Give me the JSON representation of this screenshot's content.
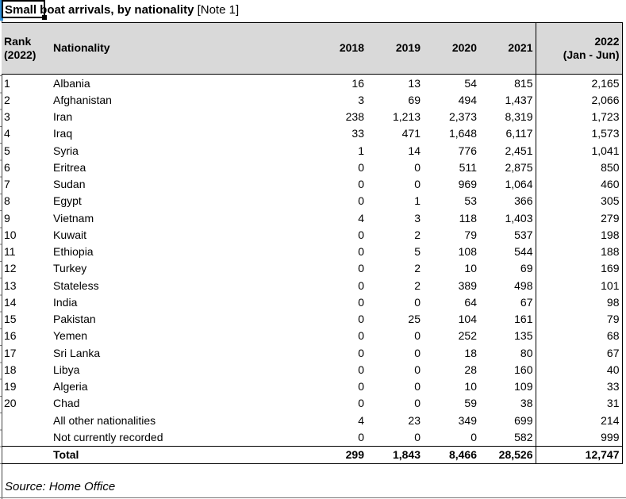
{
  "title": {
    "main": "Small boat arrivals, by nationality",
    "note": "[Note 1]"
  },
  "colors": {
    "header_bg": "#d9d9d9",
    "selection_marker": "#2b8ed8",
    "border": "#000000"
  },
  "table": {
    "headers": [
      "Rank\n(2022)",
      "Nationality",
      "2018",
      "2019",
      "2020",
      "2021",
      "2022\n(Jan - Jun)"
    ],
    "rows": [
      {
        "rank": "1",
        "nationality": "Albania",
        "values": [
          "16",
          "13",
          "54",
          "815",
          "2,165"
        ]
      },
      {
        "rank": "2",
        "nationality": "Afghanistan",
        "values": [
          "3",
          "69",
          "494",
          "1,437",
          "2,066"
        ]
      },
      {
        "rank": "3",
        "nationality": "Iran",
        "values": [
          "238",
          "1,213",
          "2,373",
          "8,319",
          "1,723"
        ]
      },
      {
        "rank": "4",
        "nationality": "Iraq",
        "values": [
          "33",
          "471",
          "1,648",
          "6,117",
          "1,573"
        ]
      },
      {
        "rank": "5",
        "nationality": "Syria",
        "values": [
          "1",
          "14",
          "776",
          "2,451",
          "1,041"
        ]
      },
      {
        "rank": "6",
        "nationality": "Eritrea",
        "values": [
          "0",
          "0",
          "511",
          "2,875",
          "850"
        ]
      },
      {
        "rank": "7",
        "nationality": "Sudan",
        "values": [
          "0",
          "0",
          "969",
          "1,064",
          "460"
        ]
      },
      {
        "rank": "8",
        "nationality": "Egypt",
        "values": [
          "0",
          "1",
          "53",
          "366",
          "305"
        ]
      },
      {
        "rank": "9",
        "nationality": "Vietnam",
        "values": [
          "4",
          "3",
          "118",
          "1,403",
          "279"
        ]
      },
      {
        "rank": "10",
        "nationality": "Kuwait",
        "values": [
          "0",
          "2",
          "79",
          "537",
          "198"
        ]
      },
      {
        "rank": "11",
        "nationality": "Ethiopia",
        "values": [
          "0",
          "5",
          "108",
          "544",
          "188"
        ]
      },
      {
        "rank": "12",
        "nationality": "Turkey",
        "values": [
          "0",
          "2",
          "10",
          "69",
          "169"
        ]
      },
      {
        "rank": "13",
        "nationality": "Stateless",
        "values": [
          "0",
          "2",
          "389",
          "498",
          "101"
        ]
      },
      {
        "rank": "14",
        "nationality": "India",
        "values": [
          "0",
          "0",
          "64",
          "67",
          "98"
        ]
      },
      {
        "rank": "15",
        "nationality": "Pakistan",
        "values": [
          "0",
          "25",
          "104",
          "161",
          "79"
        ]
      },
      {
        "rank": "16",
        "nationality": "Yemen",
        "values": [
          "0",
          "0",
          "252",
          "135",
          "68"
        ]
      },
      {
        "rank": "17",
        "nationality": "Sri Lanka",
        "values": [
          "0",
          "0",
          "18",
          "80",
          "67"
        ]
      },
      {
        "rank": "18",
        "nationality": "Libya",
        "values": [
          "0",
          "0",
          "28",
          "160",
          "40"
        ]
      },
      {
        "rank": "19",
        "nationality": "Algeria",
        "values": [
          "0",
          "0",
          "10",
          "109",
          "33"
        ]
      },
      {
        "rank": "20",
        "nationality": "Chad",
        "values": [
          "0",
          "0",
          "59",
          "38",
          "31"
        ]
      },
      {
        "rank": "",
        "nationality": "All other nationalities",
        "values": [
          "4",
          "23",
          "349",
          "699",
          "214"
        ]
      },
      {
        "rank": "",
        "nationality": "Not currently recorded",
        "values": [
          "0",
          "0",
          "0",
          "582",
          "999"
        ]
      }
    ],
    "total": {
      "label": "Total",
      "values": [
        "299",
        "1,843",
        "8,466",
        "28,526",
        "12,747"
      ]
    }
  },
  "source": "Source: Home Office"
}
